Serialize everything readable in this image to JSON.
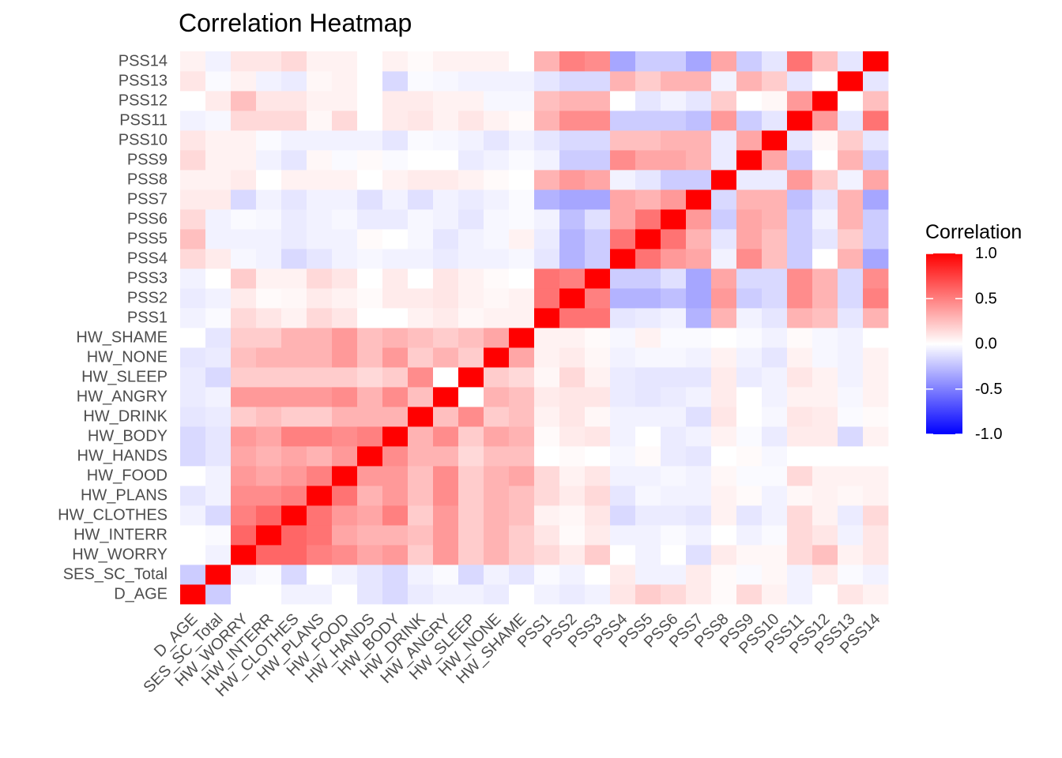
{
  "chart_data": {
    "type": "heatmap",
    "title": "Correlation Heatmap",
    "xlabel": "",
    "ylabel": "",
    "legend": {
      "title": "Correlation",
      "placement": "right",
      "ticks": [
        "1.0",
        "0.5",
        "0.0",
        "-0.5",
        "-1.0"
      ],
      "tick_values": [
        1.0,
        0.5,
        0.0,
        -0.5,
        -1.0
      ],
      "range": [
        -1,
        1
      ]
    },
    "colors": {
      "low": "#0000ff",
      "mid": "#ffffff",
      "high": "#ff0000"
    },
    "grid": true,
    "variables": [
      "D_AGE",
      "SES_SC_Total",
      "HW_WORRY",
      "HW_INTERR",
      "HW_CLOTHES",
      "HW_PLANS",
      "HW_FOOD",
      "HW_HANDS",
      "HW_BODY",
      "HW_DRINK",
      "HW_ANGRY",
      "HW_SLEEP",
      "HW_NONE",
      "HW_SHAME",
      "PSS1",
      "PSS2",
      "PSS3",
      "PSS4",
      "PSS5",
      "PSS6",
      "PSS7",
      "PSS8",
      "PSS9",
      "PSS10",
      "PSS11",
      "PSS12",
      "PSS13",
      "PSS14"
    ],
    "matrix": [
      [
        1.0,
        -0.2,
        0.0,
        0.0,
        -0.05,
        -0.1,
        0.0,
        -0.15,
        -0.15,
        -0.1,
        -0.08,
        -0.08,
        -0.1,
        0.0,
        -0.05,
        -0.08,
        -0.05,
        0.15,
        0.25,
        0.15,
        0.08,
        0.05,
        0.15,
        0.1,
        -0.05,
        0.0,
        0.1,
        0.05
      ],
      [
        -0.2,
        1.0,
        -0.05,
        -0.02,
        -0.15,
        -0.05,
        -0.05,
        -0.1,
        -0.1,
        -0.08,
        -0.05,
        -0.15,
        -0.08,
        -0.1,
        -0.02,
        -0.05,
        0.0,
        0.08,
        -0.05,
        -0.05,
        0.08,
        0.05,
        0.05,
        0.05,
        -0.03,
        0.08,
        -0.02,
        -0.05
      ],
      [
        0.0,
        -0.05,
        1.0,
        0.6,
        0.5,
        0.45,
        0.4,
        0.35,
        0.4,
        0.2,
        0.4,
        0.2,
        0.25,
        0.2,
        0.15,
        0.08,
        0.2,
        -0.03,
        -0.05,
        -0.02,
        -0.15,
        0.08,
        0.05,
        0.05,
        0.15,
        0.25,
        0.05,
        0.1
      ],
      [
        0.0,
        -0.02,
        0.6,
        1.0,
        0.6,
        0.45,
        0.35,
        0.3,
        0.35,
        0.25,
        0.4,
        0.2,
        0.3,
        0.2,
        0.1,
        0.02,
        0.05,
        -0.05,
        -0.05,
        -0.03,
        -0.05,
        0.0,
        -0.05,
        -0.02,
        0.15,
        0.1,
        -0.05,
        0.1
      ],
      [
        -0.05,
        -0.15,
        0.6,
        0.6,
        1.0,
        0.5,
        0.4,
        0.35,
        0.5,
        0.2,
        0.4,
        0.2,
        0.3,
        0.3,
        0.05,
        0.03,
        0.05,
        -0.15,
        -0.08,
        -0.08,
        -0.1,
        0.05,
        -0.1,
        -0.05,
        0.15,
        0.1,
        -0.08,
        0.15
      ],
      [
        -0.05,
        0.0,
        0.5,
        0.55,
        0.55,
        1.0,
        0.5,
        0.3,
        0.5,
        0.2,
        0.4,
        0.2,
        0.3,
        0.3,
        0.15,
        0.08,
        0.15,
        -0.1,
        -0.05,
        -0.05,
        -0.05,
        0.05,
        0.03,
        -0.05,
        0.03,
        0.05,
        0.03,
        0.05
      ],
      [
        0.0,
        -0.05,
        0.45,
        0.35,
        0.4,
        0.55,
        1.0,
        0.4,
        0.45,
        0.3,
        0.45,
        0.2,
        0.4,
        0.4,
        0.1,
        0.05,
        0.1,
        -0.05,
        -0.05,
        -0.03,
        -0.05,
        0.05,
        -0.02,
        -0.05,
        0.15,
        0.05,
        0.05,
        0.05
      ],
      [
        -0.1,
        -0.1,
        0.35,
        0.3,
        0.35,
        0.3,
        0.4,
        1.0,
        0.5,
        0.3,
        0.3,
        0.15,
        0.25,
        0.25,
        0.0,
        0.02,
        0.0,
        -0.03,
        0.02,
        -0.08,
        -0.12,
        0.0,
        0.02,
        -0.05,
        0.0,
        0.0,
        0.0,
        0.0
      ],
      [
        -0.15,
        -0.15,
        0.4,
        0.3,
        0.5,
        0.4,
        0.4,
        0.45,
        1.0,
        0.3,
        0.45,
        0.2,
        0.4,
        0.3,
        0.0,
        0.08,
        0.08,
        -0.05,
        0.0,
        -0.08,
        -0.05,
        0.05,
        -0.02,
        -0.1,
        0.08,
        0.08,
        -0.15,
        0.05
      ],
      [
        -0.08,
        -0.05,
        0.2,
        0.25,
        0.2,
        0.25,
        0.25,
        0.3,
        0.3,
        1.0,
        0.25,
        0.45,
        0.2,
        0.25,
        0.05,
        0.08,
        0.0,
        -0.05,
        -0.03,
        -0.03,
        -0.12,
        0.08,
        0.0,
        -0.02,
        0.1,
        0.08,
        -0.02,
        0.02
      ],
      [
        -0.05,
        -0.02,
        0.4,
        0.4,
        0.4,
        0.45,
        0.45,
        0.3,
        0.45,
        0.25,
        1.0,
        0.0,
        0.3,
        0.2,
        0.08,
        0.1,
        0.1,
        -0.08,
        -0.1,
        -0.05,
        -0.05,
        0.08,
        0.0,
        -0.03,
        0.05,
        0.05,
        -0.03,
        0.05
      ],
      [
        -0.05,
        -0.15,
        0.2,
        0.2,
        0.2,
        0.2,
        0.2,
        0.15,
        0.2,
        0.45,
        0.0,
        1.0,
        0.2,
        0.25,
        0.03,
        0.05,
        0.05,
        -0.05,
        -0.05,
        -0.1,
        -0.08,
        0.05,
        -0.08,
        -0.05,
        0.1,
        0.05,
        -0.05,
        0.05
      ],
      [
        -0.08,
        -0.05,
        0.3,
        0.3,
        0.3,
        0.3,
        0.3,
        0.25,
        0.35,
        0.2,
        0.3,
        0.2,
        1.0,
        0.35,
        0.05,
        0.03,
        0.02,
        -0.05,
        -0.03,
        -0.03,
        -0.05,
        0.02,
        -0.05,
        -0.1,
        0.05,
        -0.03,
        -0.05,
        0.05
      ],
      [
        0.0,
        -0.1,
        0.2,
        0.2,
        0.25,
        0.25,
        0.35,
        0.25,
        0.3,
        0.25,
        0.25,
        0.15,
        0.35,
        1.0,
        0.05,
        0.05,
        0.0,
        -0.03,
        0.05,
        -0.02,
        -0.02,
        0.0,
        -0.02,
        -0.05,
        0.02,
        -0.03,
        -0.05,
        0.0
      ],
      [
        -0.05,
        -0.02,
        0.15,
        0.1,
        0.05,
        0.15,
        0.15,
        0.0,
        0.02,
        0.05,
        0.08,
        0.03,
        0.05,
        0.05,
        1.0,
        0.55,
        0.55,
        -0.1,
        -0.08,
        -0.05,
        -0.3,
        0.3,
        -0.05,
        -0.1,
        0.3,
        0.25,
        -0.1,
        0.3
      ],
      [
        -0.08,
        -0.05,
        0.08,
        0.02,
        0.03,
        0.08,
        0.05,
        0.02,
        0.08,
        0.1,
        0.1,
        0.15,
        0.08,
        0.05,
        0.55,
        1.0,
        0.5,
        -0.3,
        -0.3,
        -0.25,
        -0.35,
        0.4,
        -0.2,
        -0.15,
        0.45,
        0.3,
        -0.15,
        0.5
      ],
      [
        -0.05,
        0.0,
        0.2,
        0.08,
        0.1,
        0.15,
        0.1,
        0.0,
        0.1,
        0.03,
        0.1,
        0.05,
        0.03,
        0.02,
        0.55,
        0.5,
        1.0,
        -0.2,
        -0.2,
        -0.12,
        -0.35,
        0.35,
        -0.2,
        -0.15,
        0.45,
        0.3,
        -0.15,
        0.45
      ],
      [
        0.1,
        0.08,
        0.0,
        -0.05,
        -0.15,
        -0.1,
        -0.05,
        -0.03,
        -0.05,
        -0.05,
        -0.08,
        -0.08,
        -0.05,
        -0.03,
        -0.1,
        -0.3,
        -0.2,
        1.0,
        0.55,
        0.35,
        0.35,
        -0.05,
        0.45,
        0.25,
        -0.2,
        0.0,
        0.3,
        -0.35
      ],
      [
        0.2,
        -0.05,
        -0.05,
        -0.05,
        -0.08,
        -0.03,
        -0.05,
        0.02,
        0.0,
        -0.05,
        -0.1,
        -0.1,
        -0.03,
        0.05,
        -0.08,
        -0.3,
        -0.2,
        0.55,
        1.0,
        0.55,
        0.3,
        -0.1,
        0.35,
        0.25,
        -0.2,
        -0.1,
        0.2,
        -0.2
      ],
      [
        0.15,
        -0.05,
        0.0,
        -0.02,
        -0.08,
        -0.05,
        -0.03,
        -0.08,
        -0.08,
        -0.05,
        -0.08,
        -0.1,
        -0.03,
        -0.02,
        -0.05,
        -0.25,
        -0.12,
        0.4,
        0.55,
        1.0,
        0.4,
        -0.2,
        0.35,
        0.3,
        -0.2,
        -0.05,
        0.3,
        -0.2
      ],
      [
        0.08,
        0.08,
        -0.12,
        -0.05,
        -0.1,
        -0.05,
        -0.05,
        -0.1,
        -0.05,
        -0.12,
        -0.05,
        -0.1,
        -0.05,
        -0.02,
        -0.3,
        -0.35,
        -0.35,
        0.35,
        0.3,
        0.4,
        1.0,
        -0.2,
        0.3,
        0.3,
        -0.25,
        -0.1,
        0.3,
        -0.35
      ],
      [
        0.02,
        0.02,
        0.08,
        0.0,
        0.05,
        0.05,
        0.03,
        0.0,
        0.05,
        0.1,
        0.08,
        0.08,
        0.05,
        0.0,
        0.3,
        0.4,
        0.35,
        -0.05,
        -0.1,
        -0.2,
        -0.15,
        1.0,
        -0.08,
        -0.08,
        0.4,
        0.2,
        -0.05,
        0.35
      ],
      [
        0.15,
        -0.02,
        0.03,
        -0.05,
        -0.1,
        0.02,
        -0.02,
        0.02,
        -0.02,
        0.0,
        0.0,
        -0.08,
        -0.05,
        -0.02,
        -0.05,
        -0.2,
        -0.15,
        0.45,
        0.35,
        0.35,
        0.3,
        -0.08,
        1.0,
        0.35,
        -0.2,
        0.0,
        0.3,
        -0.2
      ],
      [
        0.05,
        0.03,
        0.03,
        -0.02,
        -0.05,
        -0.05,
        -0.02,
        -0.03,
        -0.08,
        -0.03,
        -0.05,
        -0.05,
        -0.1,
        -0.05,
        -0.1,
        -0.15,
        -0.15,
        0.25,
        0.25,
        0.3,
        0.3,
        -0.08,
        0.35,
        1.0,
        -0.1,
        0.03,
        0.2,
        -0.1
      ],
      [
        -0.05,
        -0.05,
        0.15,
        0.15,
        0.15,
        0.03,
        0.15,
        0.0,
        0.08,
        0.1,
        0.05,
        0.1,
        0.05,
        0.02,
        0.3,
        0.45,
        0.45,
        -0.2,
        -0.2,
        -0.2,
        -0.25,
        0.4,
        -0.2,
        -0.1,
        1.0,
        0.4,
        -0.1,
        0.55
      ],
      [
        0.0,
        0.08,
        0.25,
        0.1,
        0.05,
        0.05,
        0.05,
        0.0,
        0.08,
        0.08,
        0.05,
        0.05,
        -0.03,
        -0.03,
        0.25,
        0.3,
        0.3,
        0.0,
        -0.1,
        -0.05,
        -0.1,
        0.2,
        0.0,
        0.03,
        0.4,
        1.0,
        0.0,
        0.25
      ],
      [
        0.1,
        -0.02,
        0.05,
        -0.05,
        -0.08,
        0.03,
        0.05,
        0.0,
        -0.15,
        -0.02,
        -0.03,
        -0.05,
        -0.05,
        -0.05,
        -0.1,
        -0.15,
        -0.15,
        0.3,
        0.2,
        0.3,
        0.3,
        -0.05,
        0.3,
        0.2,
        -0.1,
        0.0,
        1.0,
        -0.1
      ],
      [
        0.05,
        -0.05,
        0.1,
        0.1,
        0.15,
        0.05,
        0.05,
        0.0,
        0.05,
        0.02,
        0.05,
        0.05,
        0.05,
        0.0,
        0.3,
        0.5,
        0.45,
        -0.35,
        -0.2,
        -0.2,
        -0.35,
        0.35,
        -0.2,
        -0.1,
        0.55,
        0.25,
        -0.1,
        1.0
      ]
    ]
  }
}
